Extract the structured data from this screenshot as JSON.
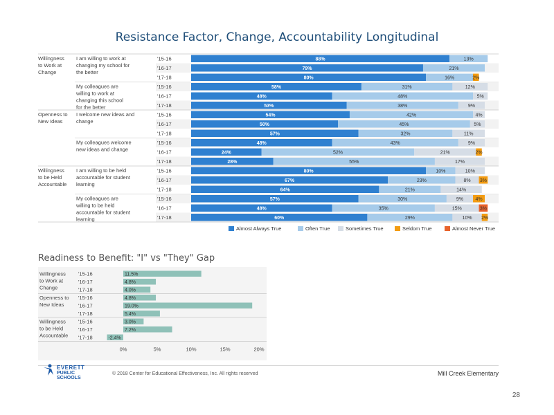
{
  "page": {
    "title": "Resistance Factor, Change, Accountability Longitudinal",
    "page_number": "28",
    "copyright": "© 2018 Center for Educational Effectiveness, Inc. All rights reserved",
    "school": "Mill Creek Elementary",
    "logo_line1": "EVERETT",
    "logo_line2": "PUBLIC SCHOOLS"
  },
  "colors": {
    "almost_always": "#2f80d0",
    "often": "#a6cbea",
    "sometimes": "#d6dde6",
    "seldom": "#f39c12",
    "almost_never": "#e8632c",
    "gap_bar": "#8fc1b8",
    "title": "#1f4e79"
  },
  "chart_data": [
    {
      "type": "bar",
      "orientation": "horizontal",
      "stacked": true,
      "title": "Resistance Factor, Change, Accountability Longitudinal",
      "xlim": [
        0,
        100
      ],
      "legend_position": "bottom",
      "series": [
        {
          "name": "Almost Always True",
          "color": "#2f80d0"
        },
        {
          "name": "Often True",
          "color": "#a6cbea"
        },
        {
          "name": "Sometimes True",
          "color": "#d6dde6"
        },
        {
          "name": "Seldom True",
          "color": "#f39c12"
        },
        {
          "name": "Almost Never True",
          "color": "#e8632c"
        }
      ],
      "categories": [
        {
          "name": "Willingness to Work at Change",
          "items": [
            {
              "question": "I am willing to work at changing my school for the better",
              "rows": [
                {
                  "year": "'15-16",
                  "values": [
                    88,
                    13,
                    0,
                    0,
                    0
                  ],
                  "labels": [
                    "88%",
                    "13%",
                    "",
                    "",
                    ""
                  ]
                },
                {
                  "year": "'16-17",
                  "values": [
                    79,
                    21,
                    0,
                    0,
                    0
                  ],
                  "labels": [
                    "79%",
                    "21%",
                    "",
                    "",
                    ""
                  ]
                },
                {
                  "year": "'17-18",
                  "values": [
                    80,
                    16,
                    0,
                    2,
                    0
                  ],
                  "labels": [
                    "80%",
                    "16%",
                    "",
                    "2%",
                    ""
                  ]
                }
              ]
            },
            {
              "question": "My colleagues are willing to work at changing this school for the better",
              "rows": [
                {
                  "year": "'15-16",
                  "values": [
                    58,
                    31,
                    12,
                    0,
                    0
                  ],
                  "labels": [
                    "58%",
                    "31%",
                    "12%",
                    "",
                    ""
                  ]
                },
                {
                  "year": "'16-17",
                  "values": [
                    48,
                    48,
                    5,
                    0,
                    0
                  ],
                  "labels": [
                    "48%",
                    "48%",
                    "5%",
                    "",
                    ""
                  ]
                },
                {
                  "year": "'17-18",
                  "values": [
                    53,
                    38,
                    9,
                    0,
                    0
                  ],
                  "labels": [
                    "53%",
                    "38%",
                    "9%",
                    "",
                    ""
                  ]
                }
              ]
            }
          ]
        },
        {
          "name": "Openness to New Ideas",
          "items": [
            {
              "question": "I welcome new ideas and change",
              "rows": [
                {
                  "year": "'15-16",
                  "values": [
                    54,
                    42,
                    4,
                    0,
                    0
                  ],
                  "labels": [
                    "54%",
                    "42%",
                    "4%",
                    "",
                    ""
                  ]
                },
                {
                  "year": "'16-17",
                  "values": [
                    50,
                    45,
                    5,
                    0,
                    0
                  ],
                  "labels": [
                    "50%",
                    "45%",
                    "5%",
                    "",
                    ""
                  ]
                },
                {
                  "year": "'17-18",
                  "values": [
                    57,
                    32,
                    11,
                    0,
                    0
                  ],
                  "labels": [
                    "57%",
                    "32%",
                    "11%",
                    "",
                    ""
                  ]
                }
              ]
            },
            {
              "question": "My colleagues welcome new ideas and change",
              "rows": [
                {
                  "year": "'15-16",
                  "values": [
                    48,
                    43,
                    9,
                    0,
                    0
                  ],
                  "labels": [
                    "48%",
                    "43%",
                    "9%",
                    "",
                    ""
                  ]
                },
                {
                  "year": "'16-17",
                  "values": [
                    24,
                    52,
                    21,
                    2,
                    0
                  ],
                  "labels": [
                    "24%",
                    "52%",
                    "21%",
                    "2%",
                    ""
                  ]
                },
                {
                  "year": "'17-18",
                  "values": [
                    28,
                    55,
                    17,
                    0,
                    0
                  ],
                  "labels": [
                    "28%",
                    "55%",
                    "17%",
                    "",
                    ""
                  ]
                }
              ]
            }
          ]
        },
        {
          "name": "Willingness to be Held Accountable",
          "items": [
            {
              "question": "I am willing to be held accountable for student learning",
              "rows": [
                {
                  "year": "'15-16",
                  "values": [
                    80,
                    10,
                    10,
                    0,
                    0
                  ],
                  "labels": [
                    "80%",
                    "10%",
                    "10%",
                    "",
                    ""
                  ]
                },
                {
                  "year": "'16-17",
                  "values": [
                    67,
                    23,
                    8,
                    3,
                    0
                  ],
                  "labels": [
                    "67%",
                    "23%",
                    "8%",
                    "3%",
                    ""
                  ]
                },
                {
                  "year": "'17-18",
                  "values": [
                    64,
                    21,
                    14,
                    0,
                    0
                  ],
                  "labels": [
                    "64%",
                    "21%",
                    "14%",
                    "",
                    ""
                  ]
                }
              ]
            },
            {
              "question": "My colleagues are willing to be held accountable for student learning",
              "rows": [
                {
                  "year": "'15-16",
                  "values": [
                    57,
                    30,
                    9,
                    4,
                    0
                  ],
                  "labels": [
                    "57%",
                    "30%",
                    "9%",
                    "4%",
                    ""
                  ]
                },
                {
                  "year": "'16-17",
                  "values": [
                    48,
                    35,
                    15,
                    0,
                    3
                  ],
                  "labels": [
                    "48%",
                    "35%",
                    "15%",
                    "",
                    "3%"
                  ]
                },
                {
                  "year": "'17-18",
                  "values": [
                    60,
                    29,
                    10,
                    2,
                    0
                  ],
                  "labels": [
                    "60%",
                    "29%",
                    "10%",
                    "2%",
                    ""
                  ]
                }
              ]
            }
          ]
        }
      ]
    },
    {
      "type": "bar",
      "orientation": "horizontal",
      "title": "Readiness to Benefit: \"I\" vs \"They\" Gap",
      "xlim": [
        -2.4,
        20
      ],
      "xticks": [
        "0%",
        "5%",
        "10%",
        "15%",
        "20%"
      ],
      "xtick_values": [
        0,
        5,
        10,
        15,
        20
      ],
      "grid": false,
      "categories": [
        {
          "name": "Willingness to Work at Change",
          "rows": [
            {
              "year": "'15-16",
              "value": 11.5,
              "label": "11.5%"
            },
            {
              "year": "'16-17",
              "value": 4.8,
              "label": "4.8%"
            },
            {
              "year": "'17-18",
              "value": 4.0,
              "label": "4.0%"
            }
          ]
        },
        {
          "name": "Openness to New Ideas",
          "rows": [
            {
              "year": "'15-16",
              "value": 4.8,
              "label": "4.8%"
            },
            {
              "year": "'16-17",
              "value": 19.0,
              "label": "19.0%"
            },
            {
              "year": "'17-18",
              "value": 5.4,
              "label": "5.4%"
            }
          ]
        },
        {
          "name": "Willingness to be Held Accountable",
          "rows": [
            {
              "year": "'15-16",
              "value": 3.0,
              "label": "3.0%"
            },
            {
              "year": "'16-17",
              "value": 7.2,
              "label": "7.2%"
            },
            {
              "year": "'17-18",
              "value": -2.4,
              "label": "-2.4%"
            }
          ]
        }
      ]
    }
  ]
}
